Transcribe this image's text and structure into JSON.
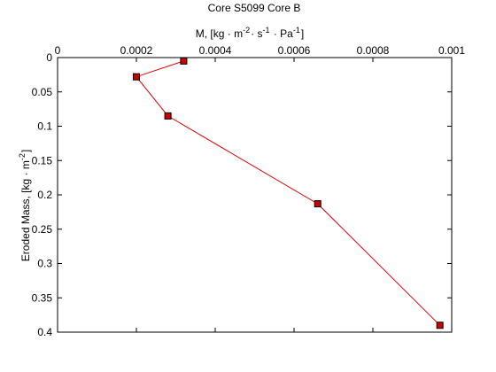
{
  "chart_data": {
    "type": "line",
    "title": "Core S5099 Core B",
    "xlabel": {
      "base": "M, [kg",
      "parts": [
        {
          "text": " · m",
          "sup": "-2"
        },
        {
          "text": "· s",
          "sup": "-1"
        },
        {
          "text": " · Pa",
          "sup": "-1"
        }
      ],
      "close": "]"
    },
    "ylabel": {
      "base": "Eroded Mass, [kg",
      "parts": [
        {
          "text": " · m",
          "sup": "-2"
        }
      ],
      "close": "]"
    },
    "xlim": [
      0,
      0.001
    ],
    "ylim": [
      0,
      0.4
    ],
    "y_inverted": true,
    "x_axis_position": "top",
    "grid": false,
    "x_ticks": [
      {
        "value": 0,
        "label": "0"
      },
      {
        "value": 0.0002,
        "label": "0.0002"
      },
      {
        "value": 0.0004,
        "label": "0.0004"
      },
      {
        "value": 0.0006,
        "label": "0.0006"
      },
      {
        "value": 0.0008,
        "label": "0.0008"
      },
      {
        "value": 0.001,
        "label": "0.001"
      }
    ],
    "y_ticks": [
      {
        "value": 0,
        "label": "0"
      },
      {
        "value": 0.05,
        "label": "0.05"
      },
      {
        "value": 0.1,
        "label": "0.1"
      },
      {
        "value": 0.15,
        "label": "0.15"
      },
      {
        "value": 0.2,
        "label": "0.2"
      },
      {
        "value": 0.25,
        "label": "0.25"
      },
      {
        "value": 0.3,
        "label": "0.3"
      },
      {
        "value": 0.35,
        "label": "0.35"
      },
      {
        "value": 0.4,
        "label": "0.4"
      }
    ],
    "series": [
      {
        "color": "#e00000",
        "marker": "square",
        "marker_color": "#cc0000",
        "points": [
          {
            "x": 0.00032,
            "y": 0.005
          },
          {
            "x": 0.0002,
            "y": 0.028
          },
          {
            "x": 0.00028,
            "y": 0.085
          },
          {
            "x": 0.00066,
            "y": 0.213
          },
          {
            "x": 0.00097,
            "y": 0.39
          }
        ]
      }
    ]
  }
}
